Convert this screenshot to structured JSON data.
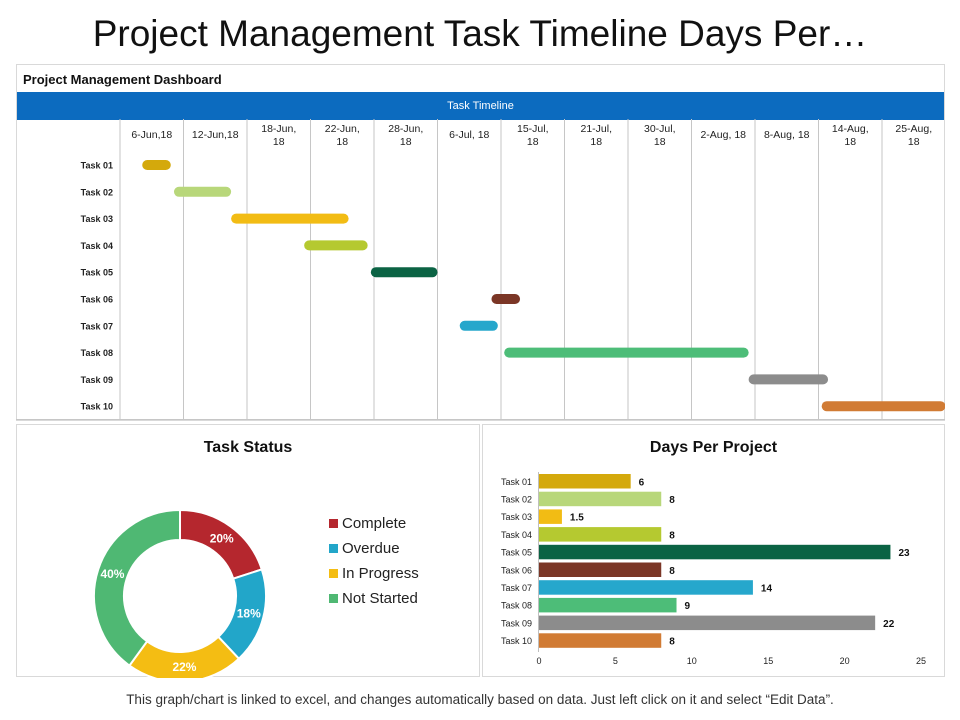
{
  "page_title": "Project Management Task Timeline Days Per…",
  "footer_note": "This graph/chart is linked to excel, and changes automatically based on data. Just left click on it and select “Edit Data”.",
  "chart_data": [
    {
      "type": "gantt",
      "panel_title": "Project Management Dashboard",
      "title": "Task Timeline",
      "date_labels": [
        "6-Jun,18",
        "12-Jun,18",
        "18-Jun, 18",
        "22-Jun, 18",
        "28-Jun, 18",
        "6-Jul, 18",
        "15-Jul, 18",
        "21-Jul, 18",
        "30-Jul, 18",
        "2-Aug, 18",
        "8-Aug, 18",
        "14-Aug, 18",
        "25-Aug, 18"
      ],
      "tasks": [
        {
          "name": "Task 01",
          "start": 0.35,
          "end": 0.8,
          "color": "#d4a90c"
        },
        {
          "name": "Task 02",
          "start": 0.85,
          "end": 1.75,
          "color": "#b8d77a"
        },
        {
          "name": "Task 03",
          "start": 1.75,
          "end": 3.6,
          "color": "#f2bc14"
        },
        {
          "name": "Task 04",
          "start": 2.9,
          "end": 3.9,
          "color": "#b5c930"
        },
        {
          "name": "Task 05",
          "start": 3.95,
          "end": 5.0,
          "color": "#0b6344"
        },
        {
          "name": "Task 06",
          "start": 5.85,
          "end": 6.3,
          "color": "#7b3626"
        },
        {
          "name": "Task 07",
          "start": 5.35,
          "end": 5.95,
          "color": "#26a7cc"
        },
        {
          "name": "Task 08",
          "start": 6.05,
          "end": 9.9,
          "color": "#4dbd78"
        },
        {
          "name": "Task 09",
          "start": 9.9,
          "end": 11.15,
          "color": "#8c8c8c"
        },
        {
          "name": "Task 10",
          "start": 11.05,
          "end": 13.0,
          "color": "#d17b34"
        }
      ]
    },
    {
      "type": "pie",
      "title": "Task Status",
      "categories": [
        "Complete",
        "Overdue",
        "In Progress",
        "Not Started"
      ],
      "values": [
        20,
        18,
        22,
        40
      ],
      "value_suffix": "%",
      "colors": [
        "#b5272e",
        "#22a6c9",
        "#f4bd13",
        "#4fb873"
      ],
      "legend": "right"
    },
    {
      "type": "bar",
      "orientation": "horizontal",
      "title": "Days Per Project",
      "categories": [
        "Task 01",
        "Task 02",
        "Task 03",
        "Task 04",
        "Task 05",
        "Task 06",
        "Task 07",
        "Task 08",
        "Task 09",
        "Task 10"
      ],
      "values": [
        6,
        8,
        1.5,
        8,
        23,
        8,
        14,
        9,
        22,
        8
      ],
      "colors": [
        "#d4a90c",
        "#b8d77a",
        "#f2bc14",
        "#b5c930",
        "#0b6344",
        "#7b3626",
        "#26a7cc",
        "#4dbd78",
        "#8c8c8c",
        "#d17b34"
      ],
      "xlim": [
        0,
        25
      ],
      "xticks": [
        0,
        5,
        10,
        15,
        20,
        25
      ]
    }
  ]
}
